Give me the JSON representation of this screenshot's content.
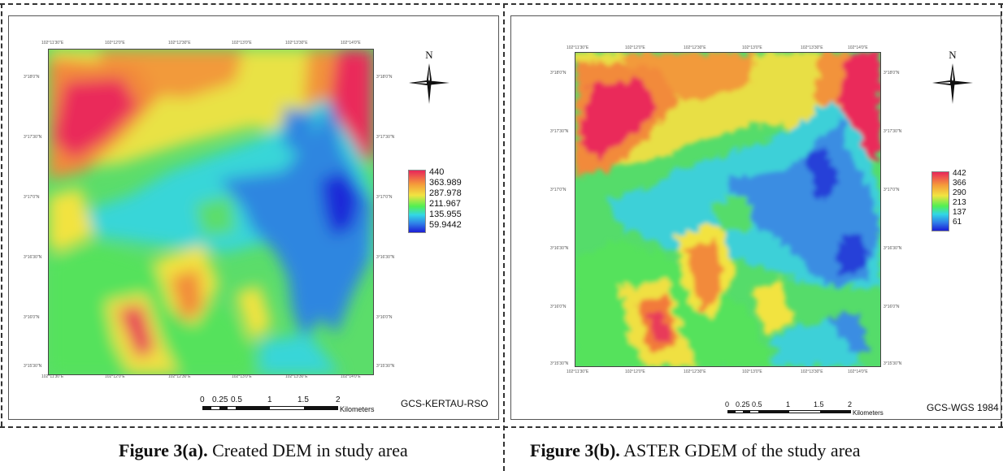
{
  "panel_a": {
    "caption_bold": "Figure 3(a).",
    "caption_text": " Created DEM in study area",
    "top_ticks": [
      "102°11'30\"E",
      "102°12'0\"E",
      "102°12'30\"E",
      "102°13'0\"E",
      "102°13'30\"E",
      "102°14'0\"E"
    ],
    "bottom_ticks": [
      "102°11'30\"E",
      "102°12'0\"E",
      "102°12'30\"E",
      "102°13'0\"E",
      "102°13'30\"E",
      "102°14'0\"E"
    ],
    "left_ticks": [
      "3°18'0\"N",
      "3°17'30\"N",
      "3°17'0\"N",
      "3°16'30\"N",
      "3°16'0\"N",
      "3°15'30\"N"
    ],
    "right_ticks": [
      "3°18'0\"N",
      "3°17'30\"N",
      "3°17'0\"N",
      "3°16'30\"N",
      "3°16'0\"N",
      "3°15'30\"N"
    ],
    "north_label": "N",
    "legend_values": [
      "440",
      "363.989",
      "287.978",
      "211.967",
      "135.955",
      "59.9442"
    ],
    "scale_numbers": [
      "0",
      "0.25",
      "0.5",
      "1",
      "1.5",
      "2"
    ],
    "scale_unit": "Kilometers",
    "crs": "GCS-KERTAU-RSO"
  },
  "panel_b": {
    "caption_bold": "Figure 3(b).",
    "caption_text": " ASTER GDEM of the study area",
    "top_ticks": [
      "102°11'30\"E",
      "102°12'0\"E",
      "102°12'30\"E",
      "102°13'0\"E",
      "102°13'30\"E",
      "102°14'0\"E"
    ],
    "bottom_ticks": [
      "102°11'30\"E",
      "102°12'0\"E",
      "102°12'30\"E",
      "102°13'0\"E",
      "102°13'30\"E",
      "102°14'0\"E"
    ],
    "left_ticks": [
      "3°18'0\"N",
      "3°17'30\"N",
      "3°17'0\"N",
      "3°16'30\"N",
      "3°16'0\"N",
      "3°15'30\"N"
    ],
    "right_ticks": [
      "3°18'0\"N",
      "3°17'30\"N",
      "3°17'0\"N",
      "3°16'30\"N",
      "3°16'0\"N",
      "3°15'30\"N"
    ],
    "north_label": "N",
    "legend_values": [
      "442",
      "366",
      "290",
      "213",
      "137",
      "61"
    ],
    "scale_numbers": [
      "0",
      "0.25",
      "0.5",
      "1",
      "1.5",
      "2"
    ],
    "scale_unit": "Kilometers",
    "crs": "GCS-WGS 1984"
  }
}
